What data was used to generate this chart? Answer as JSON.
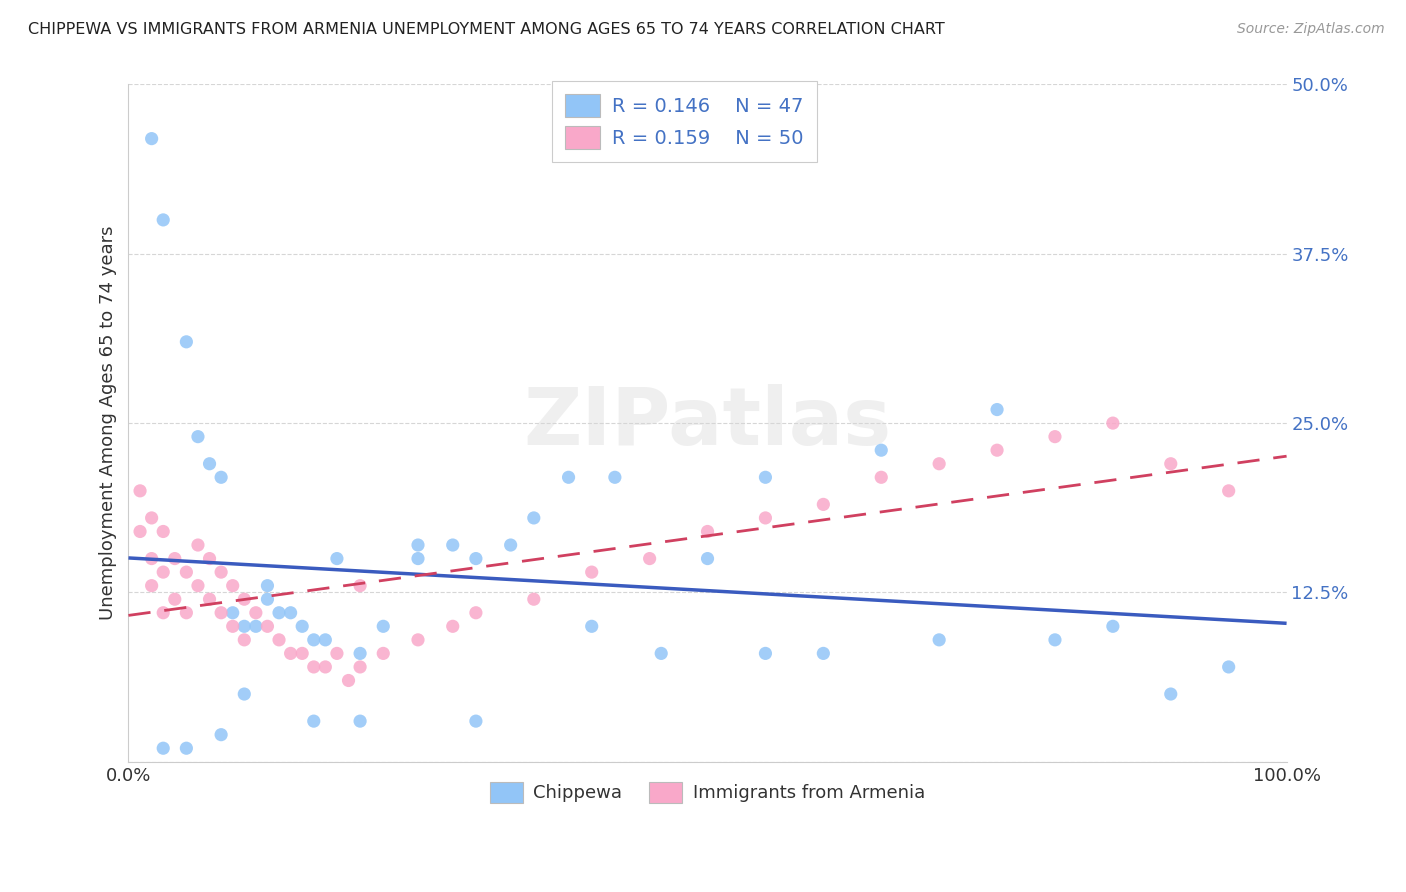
{
  "title": "CHIPPEWA VS IMMIGRANTS FROM ARMENIA UNEMPLOYMENT AMONG AGES 65 TO 74 YEARS CORRELATION CHART",
  "source": "Source: ZipAtlas.com",
  "ylabel": "Unemployment Among Ages 65 to 74 years",
  "xlim": [
    0,
    100
  ],
  "ylim": [
    0,
    50
  ],
  "xtick_positions": [
    0,
    25,
    50,
    75,
    100
  ],
  "xticklabels": [
    "0.0%",
    "",
    "",
    "",
    "100.0%"
  ],
  "ytick_positions": [
    0,
    12.5,
    25,
    37.5,
    50
  ],
  "ytick_labels": [
    "",
    "12.5%",
    "25.0%",
    "37.5%",
    "50.0%"
  ],
  "legend_r1": "R = 0.146",
  "legend_n1": "N = 47",
  "legend_r2": "R = 0.159",
  "legend_n2": "N = 50",
  "color_chippewa": "#92c5f7",
  "color_armenia": "#f9a8c9",
  "line_color_chippewa": "#3a5bbf",
  "line_color_armenia": "#d04060",
  "watermark": "ZIPatlas",
  "chippewa_x": [
    2,
    3,
    5,
    6,
    7,
    8,
    9,
    10,
    11,
    12,
    13,
    14,
    15,
    16,
    17,
    18,
    20,
    22,
    25,
    28,
    30,
    33,
    35,
    38,
    42,
    46,
    50,
    55,
    60,
    65,
    70,
    75,
    80,
    85,
    90,
    95,
    3,
    5,
    8,
    10,
    12,
    16,
    20,
    25,
    30,
    40,
    55
  ],
  "chippewa_y": [
    46,
    40,
    31,
    24,
    22,
    21,
    11,
    10,
    10,
    12,
    11,
    11,
    10,
    9,
    9,
    15,
    8,
    10,
    15,
    16,
    15,
    16,
    18,
    21,
    21,
    8,
    15,
    21,
    8,
    23,
    9,
    26,
    9,
    10,
    5,
    7,
    1,
    1,
    2,
    5,
    13,
    3,
    3,
    16,
    3,
    10,
    8
  ],
  "armenia_x": [
    1,
    1,
    2,
    2,
    2,
    3,
    3,
    3,
    4,
    4,
    5,
    5,
    6,
    6,
    7,
    7,
    8,
    8,
    9,
    9,
    10,
    10,
    11,
    12,
    13,
    14,
    15,
    16,
    17,
    18,
    19,
    20,
    22,
    25,
    28,
    30,
    35,
    40,
    45,
    50,
    55,
    60,
    65,
    70,
    75,
    80,
    85,
    90,
    95,
    20
  ],
  "armenia_y": [
    20,
    17,
    18,
    15,
    13,
    17,
    14,
    11,
    15,
    12,
    14,
    11,
    16,
    13,
    15,
    12,
    14,
    11,
    13,
    10,
    12,
    9,
    11,
    10,
    9,
    8,
    8,
    7,
    7,
    8,
    6,
    7,
    8,
    9,
    10,
    11,
    12,
    14,
    15,
    17,
    18,
    19,
    21,
    22,
    23,
    24,
    25,
    22,
    20,
    13
  ]
}
